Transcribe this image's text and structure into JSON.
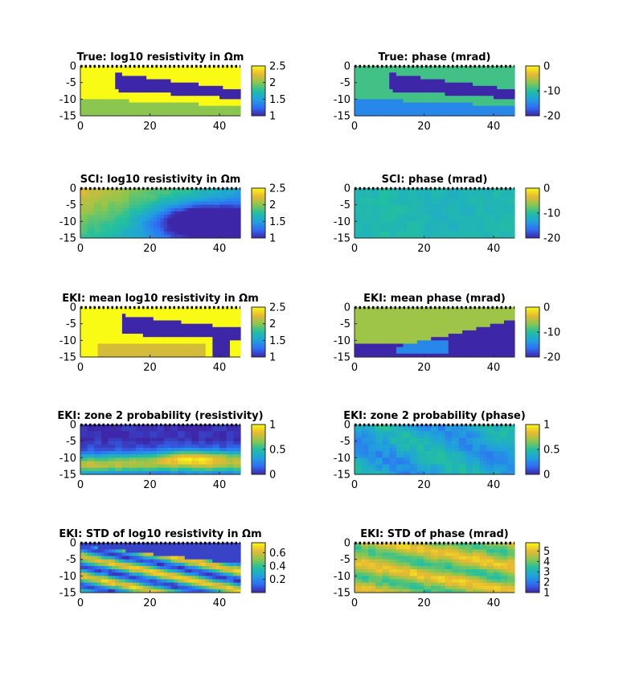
{
  "colormap": [
    "#3e26a8",
    "#2f6ef5",
    "#20a2dc",
    "#22bfa0",
    "#8bc74e",
    "#e8b932",
    "#f9fb15"
  ],
  "chart_data": [
    {
      "type": "heatmap",
      "title": "True: log10 resistivity in Ωm",
      "xlim": [
        0,
        46
      ],
      "ylim": [
        -15,
        0
      ],
      "x_ticks": [
        "0",
        "20",
        "40"
      ],
      "y_ticks": [
        "0",
        "-5",
        "-10",
        "-15"
      ],
      "colorbar": {
        "range": [
          1,
          2.5
        ],
        "ticks": [
          "2.5",
          "2",
          "1.5",
          "1"
        ]
      },
      "regions": [
        {
          "zone": "background",
          "value": 2.5
        },
        {
          "zone": "inclusion",
          "value": 1.0
        },
        {
          "zone": "bottom layer",
          "value": 2.0
        }
      ]
    },
    {
      "type": "heatmap",
      "title": "True: phase (mrad)",
      "xlim": [
        0,
        46
      ],
      "ylim": [
        -15,
        0
      ],
      "x_ticks": [
        "0",
        "20",
        "40"
      ],
      "y_ticks": [
        "0",
        "-5",
        "-10",
        "-15"
      ],
      "colorbar": {
        "range": [
          -20,
          0
        ],
        "ticks": [
          "0",
          "-10",
          "-20"
        ]
      },
      "regions": [
        {
          "zone": "background",
          "value": -9
        },
        {
          "zone": "inclusion",
          "value": -20
        },
        {
          "zone": "bottom layer",
          "value": -15
        }
      ]
    },
    {
      "type": "heatmap",
      "title": "SCI: log10 resistivity in Ωm",
      "xlim": [
        0,
        46
      ],
      "ylim": [
        -15,
        0
      ],
      "x_ticks": [
        "0",
        "20",
        "40"
      ],
      "y_ticks": [
        "0",
        "-5",
        "-10",
        "-15"
      ],
      "colorbar": {
        "range": [
          1,
          2.5
        ],
        "ticks": [
          "2.5",
          "2",
          "1.5",
          "1"
        ]
      },
      "pattern": "smooth high background with low blob near x=35, y=-10"
    },
    {
      "type": "heatmap",
      "title": "SCI: phase (mrad)",
      "xlim": [
        0,
        46
      ],
      "ylim": [
        -15,
        0
      ],
      "x_ticks": [
        "0",
        "20",
        "40"
      ],
      "y_ticks": [
        "0",
        "-5",
        "-10",
        "-15"
      ],
      "colorbar": {
        "range": [
          -20,
          0
        ],
        "ticks": [
          "0",
          "-10",
          "-20"
        ]
      },
      "pattern": "nearly uniform, about -11"
    },
    {
      "type": "heatmap",
      "title": "EKI: mean log10 resistivity in Ωm",
      "xlim": [
        0,
        46
      ],
      "ylim": [
        -15,
        0
      ],
      "x_ticks": [
        "0",
        "20",
        "40"
      ],
      "y_ticks": [
        "0",
        "-5",
        "-10",
        "-15"
      ],
      "colorbar": {
        "range": [
          1,
          2.5
        ],
        "ticks": [
          "2.5",
          "2",
          "1.5",
          "1"
        ]
      },
      "regions": [
        {
          "zone": "background",
          "value": 2.5
        },
        {
          "zone": "inclusion",
          "value": 1.0
        },
        {
          "zone": "bottom layer",
          "value": 2.2
        }
      ]
    },
    {
      "type": "heatmap",
      "title": "EKI: mean phase (mrad)",
      "xlim": [
        0,
        46
      ],
      "ylim": [
        -15,
        0
      ],
      "x_ticks": [
        "0",
        "20",
        "40"
      ],
      "y_ticks": [
        "0",
        "-5",
        "-10",
        "-15"
      ],
      "colorbar": {
        "range": [
          -20,
          0
        ],
        "ticks": [
          "0",
          "-10",
          "-20"
        ]
      },
      "regions": [
        {
          "zone": "background",
          "value": -6
        },
        {
          "zone": "inclusion",
          "value": -20
        },
        {
          "zone": "bottom patch",
          "value": -15
        }
      ]
    },
    {
      "type": "heatmap",
      "title": "EKI: zone 2 probability (resistivity)",
      "xlim": [
        0,
        46
      ],
      "ylim": [
        -15,
        0
      ],
      "x_ticks": [
        "0",
        "20",
        "40"
      ],
      "y_ticks": [
        "0",
        "-5",
        "-10",
        "-15"
      ],
      "colorbar": {
        "range": [
          0,
          1
        ],
        "ticks": [
          "1",
          "0.5",
          "0"
        ]
      },
      "pattern": "low near surface, high band near y=-11"
    },
    {
      "type": "heatmap",
      "title": "EKI: zone 2 probability (phase)",
      "xlim": [
        0,
        46
      ],
      "ylim": [
        -15,
        0
      ],
      "x_ticks": [
        "0",
        "20",
        "40"
      ],
      "y_ticks": [
        "0",
        "-5",
        "-10",
        "-15"
      ],
      "colorbar": {
        "range": [
          0,
          1
        ],
        "ticks": [
          "1",
          "0.5",
          "0"
        ]
      },
      "pattern": "mostly 0.3-0.5"
    },
    {
      "type": "heatmap",
      "title": "EKI: STD of log10 resistivity in Ωm",
      "xlim": [
        0,
        46
      ],
      "ylim": [
        -15,
        0
      ],
      "x_ticks": [
        "0",
        "20",
        "40"
      ],
      "y_ticks": [
        "0",
        "-5",
        "-10",
        "-15"
      ],
      "colorbar": {
        "range": [
          0,
          0.75
        ],
        "ticks": [
          "0.6",
          "0.4",
          "0.2"
        ]
      },
      "pattern": "low near surface, high stripes at depth"
    },
    {
      "type": "heatmap",
      "title": "EKI: STD of phase (mrad)",
      "xlim": [
        0,
        46
      ],
      "ylim": [
        -15,
        0
      ],
      "x_ticks": [
        "0",
        "20",
        "40"
      ],
      "y_ticks": [
        "0",
        "-5",
        "-10",
        "-15"
      ],
      "colorbar": {
        "range": [
          1,
          5.8
        ],
        "ticks": [
          "5",
          "4",
          "3",
          "2",
          "1"
        ]
      },
      "pattern": "mostly 4-5 with yellow band"
    }
  ]
}
